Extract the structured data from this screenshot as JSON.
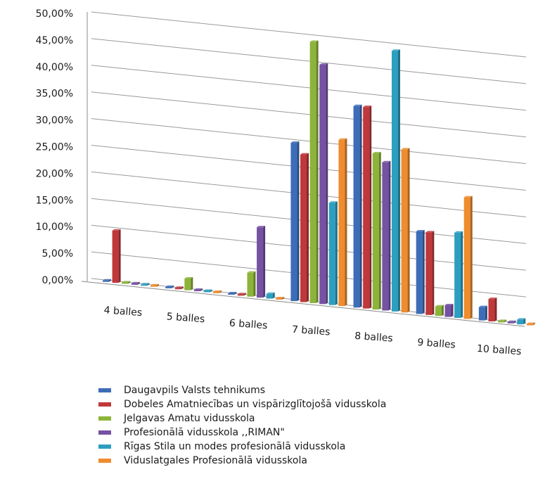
{
  "chart_data": {
    "type": "bar",
    "categories": [
      "4 balles",
      "5 balles",
      "6 balles",
      "7 balles",
      "8 balles",
      "9 balles",
      "10 balles"
    ],
    "yticks": [
      "0,00%",
      "5,00%",
      "10,00%",
      "15,00%",
      "20,00%",
      "25,00%",
      "30,00%",
      "35,00%",
      "40,00%",
      "45,00%",
      "50,00%"
    ],
    "ylim": [
      0,
      50
    ],
    "grid": true,
    "legend_position": "bottom",
    "series": [
      {
        "name": "Daugavpils Valsts tehnikums",
        "color": "#3d6db8",
        "values": [
          0,
          0,
          0,
          29.7,
          37.8,
          15.5,
          2.5
        ]
      },
      {
        "name": "Dobeles Amatniecības un vispārizglītojošā vidusskola",
        "color": "#c0383a",
        "values": [
          9.8,
          0,
          0,
          27.7,
          37.8,
          15.5,
          4.2
        ]
      },
      {
        "name": "Jelgavas Amatu vidusskola",
        "color": "#8db43a",
        "values": [
          0,
          2.2,
          4.5,
          49.0,
          29.3,
          1.8,
          0
        ]
      },
      {
        "name": "Profesionālā vidusskola ,,RIMAN\"",
        "color": "#7552a3",
        "values": [
          0,
          0,
          13.2,
          44.9,
          27.8,
          2.2,
          0
        ]
      },
      {
        "name": "Rīgas Stila un modes profesionālā vidusskola",
        "color": "#2c9fc0",
        "values": [
          0,
          0,
          0.9,
          19.2,
          48.9,
          16.0,
          0.9
        ]
      },
      {
        "name": "Viduslatgales Profesionālā vidusskola",
        "color": "#ef8c2e",
        "values": [
          0,
          0,
          0,
          31.2,
          30.6,
          22.8,
          0
        ]
      }
    ]
  }
}
